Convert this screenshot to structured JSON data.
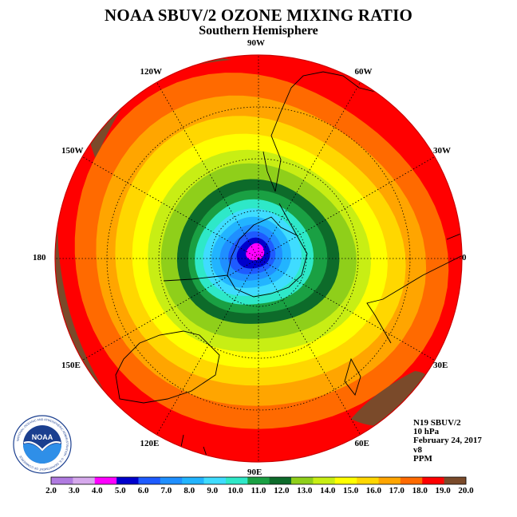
{
  "title": "NOAA SBUV/2 OZONE MIXING RATIO",
  "subtitle": "Southern Hemisphere",
  "longitude_labels": [
    {
      "text": "90W",
      "deg": -90
    },
    {
      "text": "60W",
      "deg": -60
    },
    {
      "text": "30W",
      "deg": -30
    },
    {
      "text": "0",
      "deg": 0
    },
    {
      "text": "30E",
      "deg": 30
    },
    {
      "text": "60E",
      "deg": 60
    },
    {
      "text": "90E",
      "deg": 90
    },
    {
      "text": "120E",
      "deg": 120
    },
    {
      "text": "150E",
      "deg": 150
    },
    {
      "text": "180",
      "deg": 180
    },
    {
      "text": "150W",
      "deg": -150
    },
    {
      "text": "120W",
      "deg": -120
    }
  ],
  "info": {
    "satellite": "N19 SBUV/2",
    "level": "10 hPa",
    "date": "February 24, 2017",
    "version": "v8",
    "units": "PPM"
  },
  "colorbar": {
    "labels": [
      "2.0",
      "3.0",
      "4.0",
      "5.0",
      "6.0",
      "7.0",
      "8.0",
      "9.0",
      "10.0",
      "11.0",
      "12.0",
      "13.0",
      "14.0",
      "15.0",
      "16.0",
      "17.0",
      "18.0",
      "19.0",
      "20.0"
    ],
    "colors": [
      "#b07be0",
      "#d6a9ec",
      "#ff00ff",
      "#0000cc",
      "#1e5bff",
      "#1f8fff",
      "#22b4ff",
      "#3fdcff",
      "#2ee8c8",
      "#1aa043",
      "#0d6b2a",
      "#8fcf1a",
      "#c8ee14",
      "#ffff00",
      "#ffd700",
      "#ffa500",
      "#ff6a00",
      "#ff0000",
      "#7a4a2a"
    ]
  },
  "logo": {
    "text": "NOAA",
    "ring_text": "NATIONAL OCEANIC AND ATMOSPHERIC ADMINISTRATION · U.S. DEPARTMENT OF COMMERCE"
  },
  "map": {
    "projection": "south-polar-stereographic",
    "field": "ozone mixing ratio",
    "range_ppm": [
      2.0,
      20.0
    ],
    "minimum_region_ppm": 4.0,
    "outer_region_ppm": 19.0,
    "max_patches_ppm": 20.0
  }
}
